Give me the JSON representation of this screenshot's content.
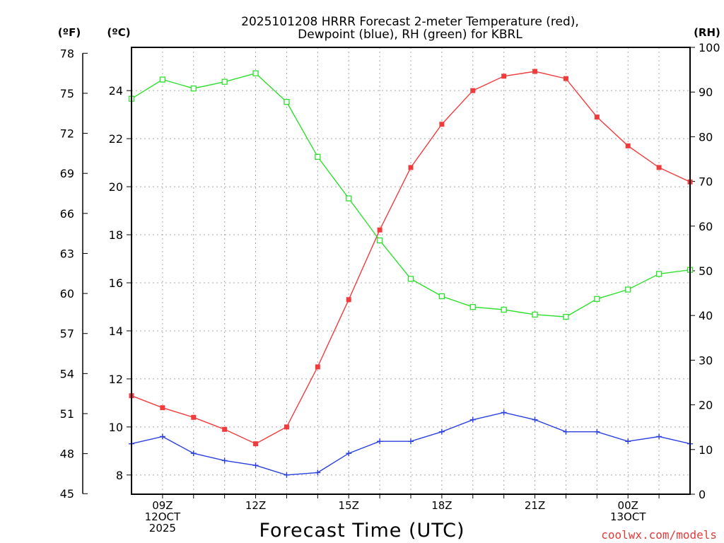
{
  "chart_data": {
    "type": "line",
    "title_line1": "2025101208 HRRR Forecast 2-meter Temperature (red),",
    "title_line2": "Dewpoint (blue), RH (green) for KBRL",
    "xlabel": "Forecast Time (UTC)",
    "credit": "coolwx.com/models",
    "unit_labels": {
      "fahrenheit": "(ºF)",
      "celsius": "(ºC)",
      "rh": "(RH)"
    },
    "x_range": [
      8,
      26
    ],
    "celsius_range": [
      7.2,
      25.8
    ],
    "rh_range": [
      0,
      100
    ],
    "x_ticks": [
      {
        "x": 9,
        "lines": [
          "09Z",
          "12OCT",
          "2025"
        ]
      },
      {
        "x": 12,
        "lines": [
          "12Z"
        ]
      },
      {
        "x": 15,
        "lines": [
          "15Z"
        ]
      },
      {
        "x": 18,
        "lines": [
          "18Z"
        ]
      },
      {
        "x": 21,
        "lines": [
          "21Z"
        ]
      },
      {
        "x": 24,
        "lines": [
          "00Z",
          "13OCT"
        ]
      }
    ],
    "celsius_ticks": [
      "8",
      "10",
      "12",
      "14",
      "16",
      "18",
      "20",
      "22",
      "24"
    ],
    "fahrenheit_ticks": [
      "45",
      "48",
      "51",
      "54",
      "57",
      "60",
      "63",
      "66",
      "69",
      "72",
      "75",
      "78"
    ],
    "rh_ticks": [
      "0",
      "10",
      "20",
      "30",
      "40",
      "50",
      "60",
      "70",
      "80",
      "90",
      "100"
    ],
    "x": [
      8,
      9,
      10,
      11,
      12,
      13,
      14,
      15,
      16,
      17,
      18,
      19,
      20,
      21,
      22,
      23,
      24,
      25,
      26
    ],
    "series": [
      {
        "name": "Temperature (°C)",
        "axis": "celsius",
        "color": "#f03c3c",
        "marker": "filled-square",
        "values": [
          11.3,
          10.8,
          10.4,
          9.9,
          9.3,
          10.0,
          12.5,
          15.3,
          18.2,
          20.8,
          22.6,
          24.0,
          24.6,
          24.8,
          24.5,
          22.9,
          21.7,
          20.8,
          20.2
        ]
      },
      {
        "name": "Dewpoint (°C)",
        "axis": "celsius",
        "color": "#2b3fe0",
        "marker": "plus",
        "values": [
          9.3,
          9.6,
          8.9,
          8.6,
          8.4,
          8.0,
          8.1,
          8.9,
          9.4,
          9.4,
          9.8,
          10.3,
          10.6,
          10.3,
          9.8,
          9.8,
          9.4,
          9.6,
          9.3
        ]
      },
      {
        "name": "Relative Humidity (%)",
        "axis": "rh",
        "color": "#2ee02e",
        "marker": "open-square",
        "values": [
          88.5,
          92.8,
          90.8,
          92.3,
          94.2,
          87.8,
          75.5,
          66.2,
          56.8,
          48.2,
          44.3,
          41.9,
          41.3,
          40.2,
          39.7,
          43.7,
          45.8,
          49.3,
          50.2
        ]
      }
    ]
  }
}
